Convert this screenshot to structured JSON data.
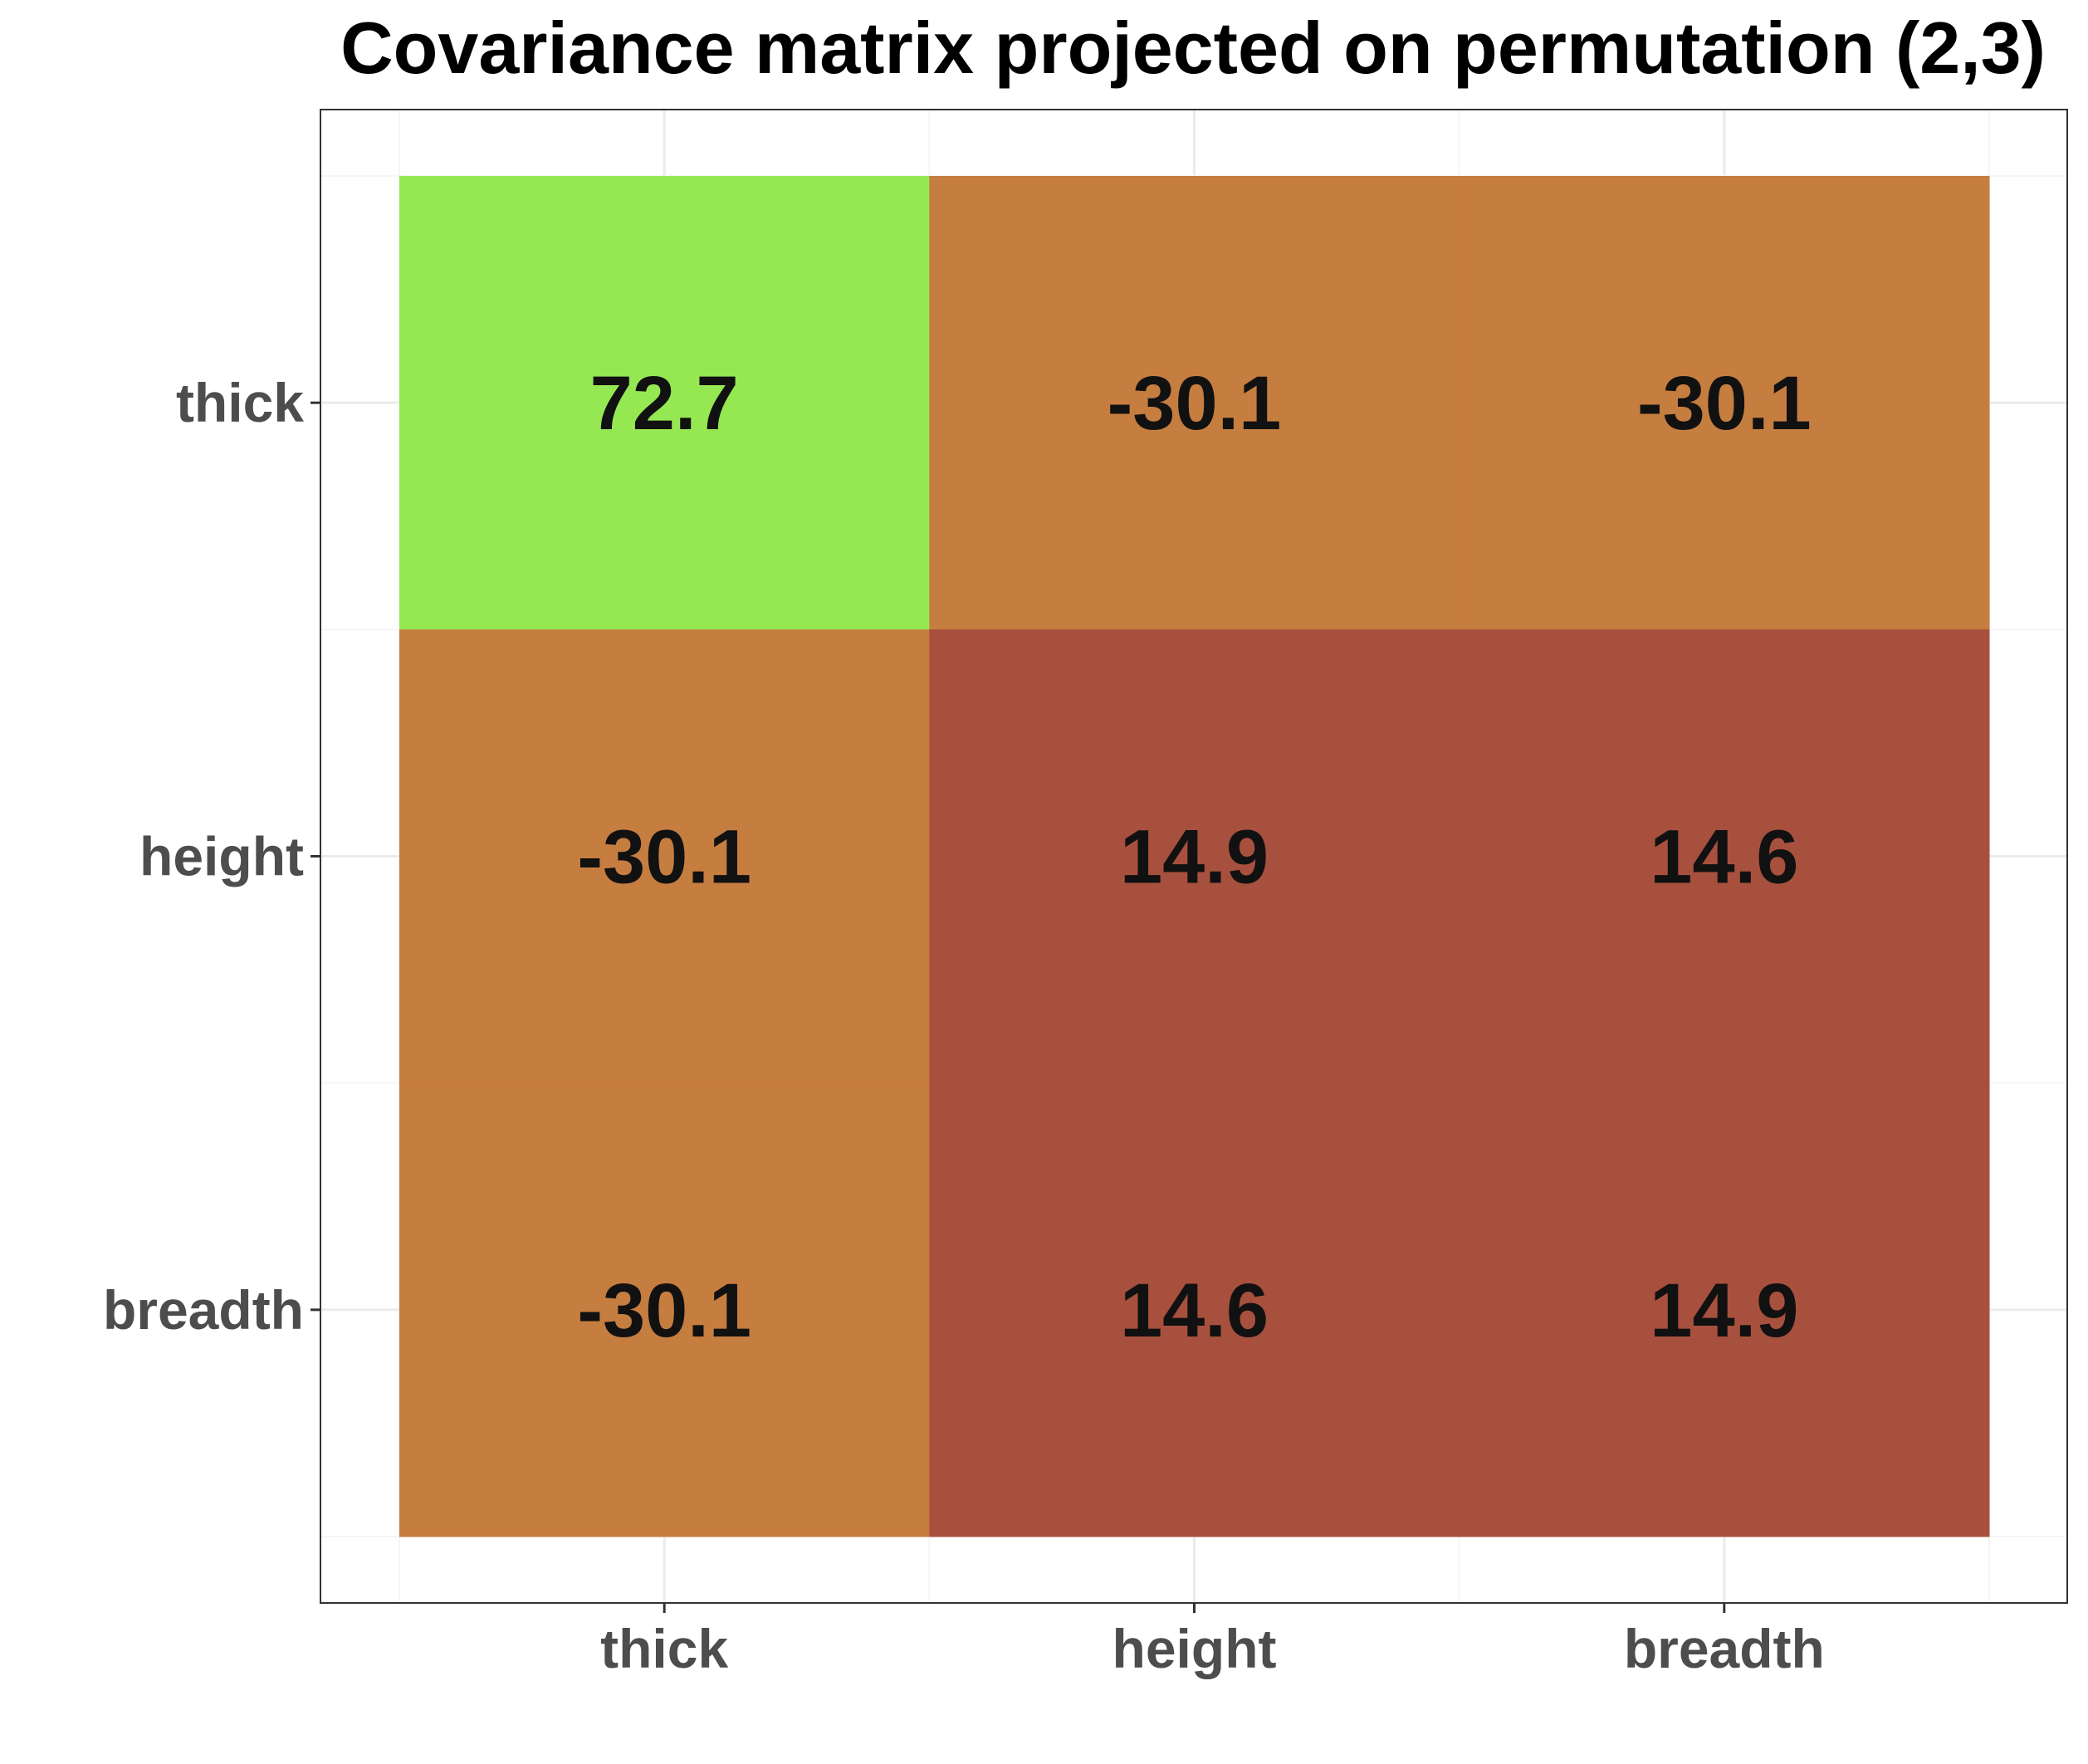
{
  "chart_data": {
    "type": "heatmap",
    "title": "Covariance matrix projected on permutation (2,3)",
    "xlabel": "",
    "ylabel": "",
    "x_categories": [
      "thick",
      "height",
      "breadth"
    ],
    "y_categories": [
      "thick",
      "height",
      "breadth"
    ],
    "values": [
      [
        72.7,
        -30.1,
        -30.1
      ],
      [
        -30.1,
        14.9,
        14.6
      ],
      [
        -30.1,
        14.6,
        14.9
      ]
    ],
    "value_labels": [
      [
        "72.7",
        "-30.1",
        "-30.1"
      ],
      [
        "-30.1",
        "14.9",
        "14.6"
      ],
      [
        "-30.1",
        "14.6",
        "14.9"
      ]
    ],
    "colors": {
      "high": "#96e853",
      "mid": "#c67d40",
      "low": "#a8503e"
    },
    "grid": true,
    "legend": "none"
  }
}
